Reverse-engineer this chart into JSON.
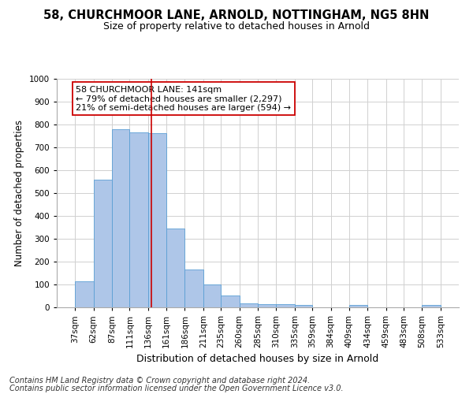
{
  "title": "58, CHURCHMOOR LANE, ARNOLD, NOTTINGHAM, NG5 8HN",
  "subtitle": "Size of property relative to detached houses in Arnold",
  "xlabel": "Distribution of detached houses by size in Arnold",
  "ylabel": "Number of detached properties",
  "footer_line1": "Contains HM Land Registry data © Crown copyright and database right 2024.",
  "footer_line2": "Contains public sector information licensed under the Open Government Licence v3.0.",
  "annotation_line1": "58 CHURCHMOOR LANE: 141sqm",
  "annotation_line2": "← 79% of detached houses are smaller (2,297)",
  "annotation_line3": "21% of semi-detached houses are larger (594) →",
  "property_size": 141,
  "bin_edges": [
    37,
    62,
    87,
    111,
    136,
    161,
    186,
    211,
    235,
    260,
    285,
    310,
    335,
    359,
    384,
    409,
    434,
    459,
    483,
    508,
    533
  ],
  "bar_values": [
    113,
    557,
    778,
    766,
    763,
    345,
    165,
    99,
    52,
    18,
    14,
    13,
    11,
    0,
    0,
    9,
    0,
    0,
    0,
    9
  ],
  "bar_color": "#aec6e8",
  "bar_edge_color": "#5a9fd4",
  "vline_color": "#cc0000",
  "vline_x": 141,
  "ylim": [
    0,
    1000
  ],
  "yticks": [
    0,
    100,
    200,
    300,
    400,
    500,
    600,
    700,
    800,
    900,
    1000
  ],
  "background_color": "#ffffff",
  "grid_color": "#d0d0d0",
  "title_fontsize": 10.5,
  "subtitle_fontsize": 9,
  "xlabel_fontsize": 9,
  "ylabel_fontsize": 8.5,
  "tick_fontsize": 7.5,
  "annotation_fontsize": 8,
  "footer_fontsize": 7
}
